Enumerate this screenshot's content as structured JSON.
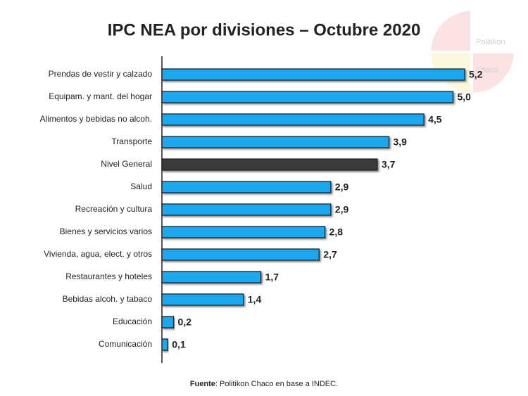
{
  "chart_data": {
    "type": "bar",
    "orientation": "horizontal",
    "title": "IPC NEA por divisiones – Octubre 2020",
    "categories": [
      "Prendas de vestir y calzado",
      "Equipam. y mant. del hogar",
      "Alimentos y bebidas no alcoh.",
      "Transporte",
      "Nivel General",
      "Salud",
      "Recreación y cultura",
      "Bienes y servicios varios",
      "Vivienda, agua, elect. y otros",
      "Restaurantes y hoteles",
      "Bebidas alcoh. y tabaco",
      "Educación",
      "Comunicación"
    ],
    "values": [
      5.2,
      5.0,
      4.5,
      3.9,
      3.7,
      2.9,
      2.9,
      2.8,
      2.7,
      1.7,
      1.4,
      0.2,
      0.1
    ],
    "value_labels": [
      "5,2",
      "5,0",
      "4,5",
      "3,9",
      "3,7",
      "2,9",
      "2,9",
      "2,8",
      "2,7",
      "1,7",
      "1,4",
      "0,2",
      "0,1"
    ],
    "colors": [
      "#1fa8ee",
      "#1fa8ee",
      "#1fa8ee",
      "#1fa8ee",
      "#3b3b3b",
      "#1fa8ee",
      "#1fa8ee",
      "#1fa8ee",
      "#1fa8ee",
      "#1fa8ee",
      "#1fa8ee",
      "#1fa8ee",
      "#1fa8ee"
    ],
    "xlim": [
      0,
      5.2
    ]
  },
  "source": {
    "label": "Fuente",
    "text": ": Politikon Chaco en base a INDEC."
  },
  "watermark": [
    "Politikon",
    "Chaco"
  ]
}
